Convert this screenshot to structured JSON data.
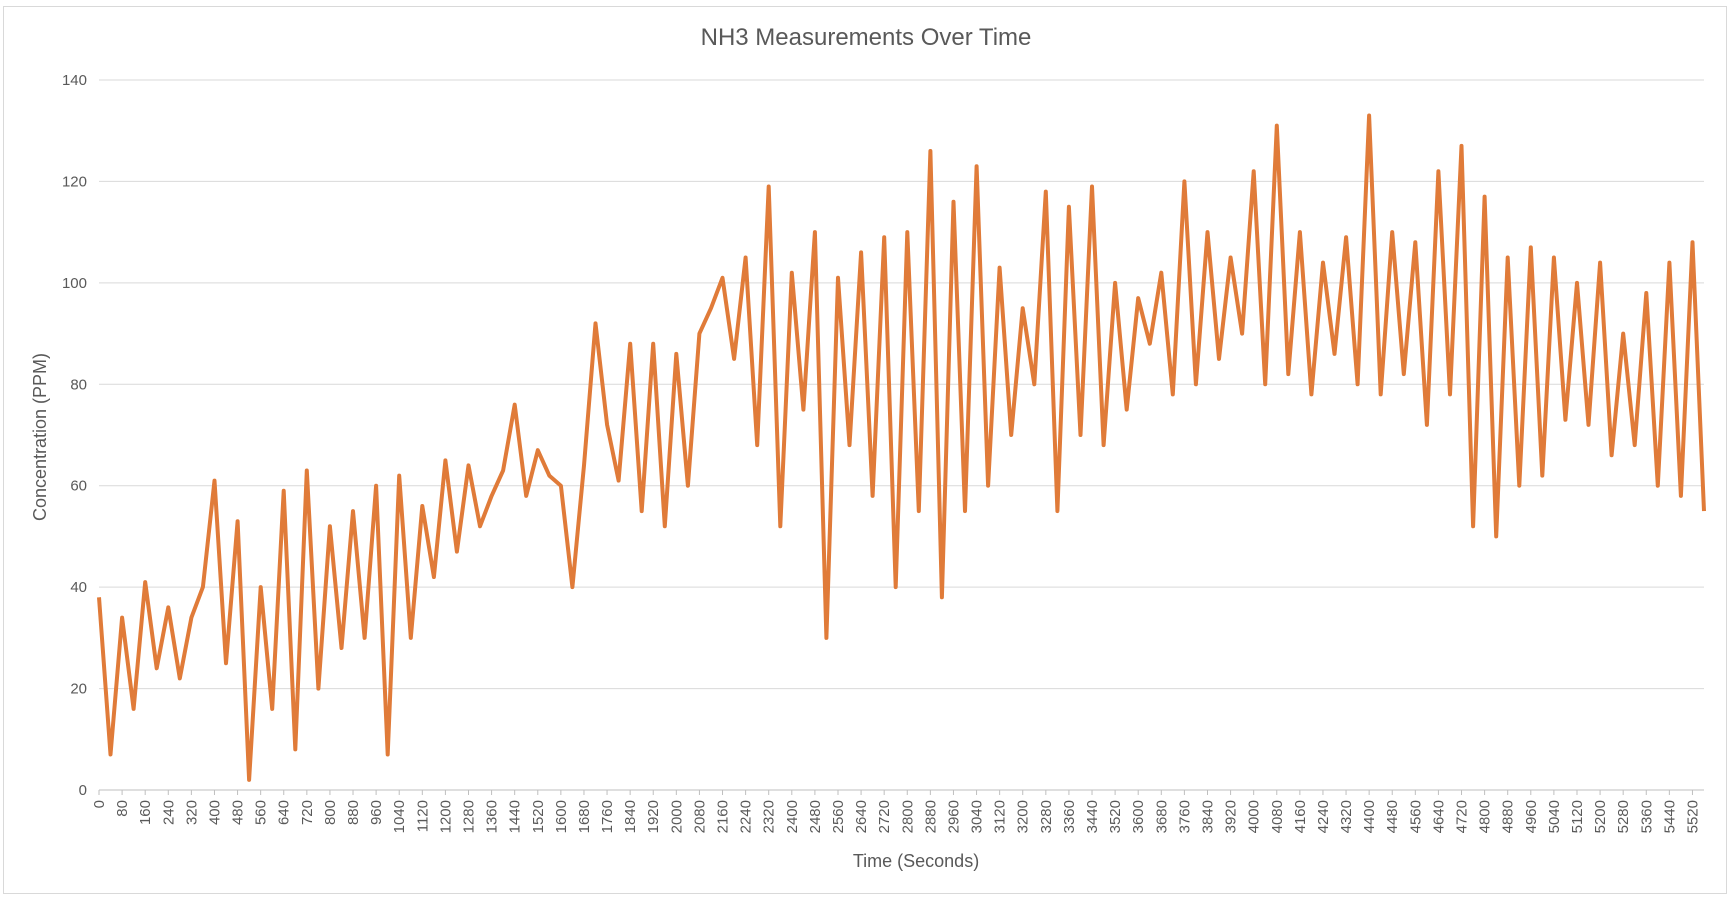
{
  "chart_data": {
    "type": "line",
    "title": "NH3 Measurements Over Time",
    "xlabel": "Time (Seconds)",
    "ylabel": "Concentration (PPM)",
    "xlim": [
      0,
      5560
    ],
    "ylim": [
      0,
      140
    ],
    "y_ticks": [
      0,
      20,
      40,
      60,
      80,
      100,
      120,
      140
    ],
    "x_tick_step": 80,
    "grid": true,
    "legend": "none",
    "series": [
      {
        "color": "#e07b39",
        "x": [
          0,
          40,
          80,
          120,
          160,
          200,
          240,
          280,
          320,
          360,
          400,
          440,
          480,
          520,
          560,
          600,
          640,
          680,
          720,
          760,
          800,
          840,
          880,
          920,
          960,
          1000,
          1040,
          1080,
          1120,
          1160,
          1200,
          1240,
          1280,
          1320,
          1360,
          1400,
          1440,
          1480,
          1520,
          1560,
          1600,
          1640,
          1680,
          1720,
          1760,
          1800,
          1840,
          1880,
          1920,
          1960,
          2000,
          2040,
          2080,
          2120,
          2160,
          2200,
          2240,
          2280,
          2320,
          2360,
          2400,
          2440,
          2480,
          2520,
          2560,
          2600,
          2640,
          2680,
          2720,
          2760,
          2800,
          2840,
          2880,
          2920,
          2960,
          3000,
          3040,
          3080,
          3120,
          3160,
          3200,
          3240,
          3280,
          3320,
          3360,
          3400,
          3440,
          3480,
          3520,
          3560,
          3600,
          3640,
          3680,
          3720,
          3760,
          3800,
          3840,
          3880,
          3920,
          3960,
          4000,
          4040,
          4080,
          4120,
          4160,
          4200,
          4240,
          4280,
          4320,
          4360,
          4400,
          4440,
          4480,
          4520,
          4560,
          4600,
          4640,
          4680,
          4720,
          4760,
          4800,
          4840,
          4880,
          4920,
          4960,
          5000,
          5040,
          5080,
          5120,
          5160,
          5200,
          5240,
          5280,
          5320,
          5360,
          5400,
          5440,
          5480,
          5520,
          5560
        ],
        "y": [
          38,
          7,
          34,
          16,
          41,
          24,
          36,
          22,
          34,
          40,
          61,
          25,
          53,
          2,
          40,
          16,
          59,
          8,
          63,
          20,
          52,
          28,
          55,
          30,
          60,
          7,
          62,
          30,
          56,
          42,
          65,
          47,
          64,
          52,
          58,
          63,
          76,
          58,
          67,
          62,
          60,
          40,
          64,
          92,
          72,
          61,
          88,
          55,
          88,
          52,
          86,
          60,
          90,
          95,
          101,
          85,
          105,
          68,
          119,
          52,
          102,
          75,
          110,
          30,
          101,
          68,
          106,
          58,
          109,
          40,
          110,
          55,
          126,
          38,
          116,
          55,
          123,
          60,
          103,
          70,
          95,
          80,
          118,
          55,
          115,
          70,
          119,
          68,
          100,
          75,
          97,
          88,
          102,
          78,
          120,
          80,
          110,
          85,
          105,
          90,
          122,
          80,
          131,
          82,
          110,
          78,
          104,
          86,
          109,
          80,
          133,
          78,
          110,
          82,
          108,
          72,
          122,
          78,
          127,
          52,
          117,
          50,
          105,
          60,
          107,
          62,
          105,
          73,
          100,
          72,
          104,
          66,
          90,
          68,
          98,
          60,
          104,
          58,
          108,
          55
        ],
        "y_extremes_note": ""
      }
    ]
  }
}
